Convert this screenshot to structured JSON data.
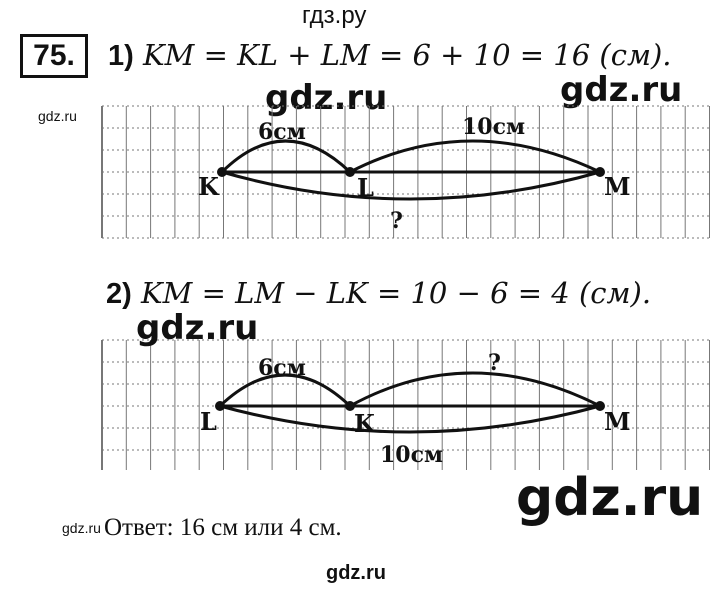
{
  "header": {
    "site": "гдз.ру",
    "problem_number": "75."
  },
  "part1": {
    "label": "1)",
    "equation": "KM = KL + LM = 6 + 10 = 16 (см).",
    "points": [
      "K",
      "L",
      "M"
    ],
    "arc_left_label": "6см",
    "arc_right_label": "10см",
    "arc_bottom_label": "?"
  },
  "part2": {
    "label": "2)",
    "equation": "KM = LM − LK = 10 − 6 = 4 (см).",
    "points": [
      "L",
      "K",
      "M"
    ],
    "arc_left_label": "6см",
    "arc_right_label": "?",
    "arc_bottom_label": "10см"
  },
  "answer": "Ответ: 16 см или 4 см.",
  "watermarks": {
    "main": "gdz.ru",
    "small": "gdz.ru"
  }
}
